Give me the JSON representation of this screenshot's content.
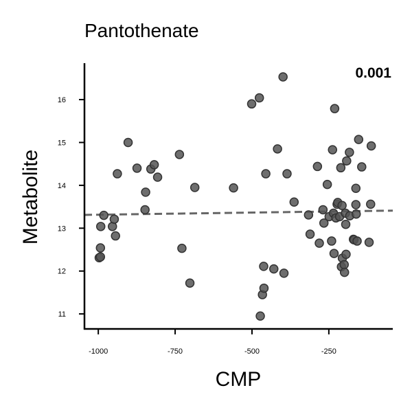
{
  "chart_data": {
    "type": "scatter",
    "title": "Pantothenate",
    "xlabel": "CMP",
    "ylabel": "Metabolite",
    "annotation": "0.001",
    "xlim": [
      -1045,
      -42
    ],
    "ylim": [
      10.65,
      16.85
    ],
    "xticks": [
      -1000,
      -750,
      -500,
      -250
    ],
    "yticks": [
      11,
      12,
      13,
      14,
      15,
      16
    ],
    "xtick_labels": [
      "-1000",
      "-750",
      "-500",
      "-250"
    ],
    "ytick_labels": [
      "11",
      "12",
      "13",
      "14",
      "15",
      "16"
    ],
    "grid": false,
    "colors": {
      "points": "#555555",
      "trend": "#666666",
      "axes": "#000000"
    },
    "trend_line": {
      "x": [
        -1045,
        -42
      ],
      "y": [
        13.31,
        13.41
      ]
    },
    "points": [
      {
        "x": -997,
        "y": 12.31
      },
      {
        "x": -993,
        "y": 12.33
      },
      {
        "x": -993,
        "y": 12.54
      },
      {
        "x": -992,
        "y": 13.04
      },
      {
        "x": -982,
        "y": 13.3
      },
      {
        "x": -954,
        "y": 13.04
      },
      {
        "x": -948,
        "y": 13.21
      },
      {
        "x": -944,
        "y": 12.82
      },
      {
        "x": -938,
        "y": 14.27
      },
      {
        "x": -903,
        "y": 15.0
      },
      {
        "x": -874,
        "y": 14.4
      },
      {
        "x": -848,
        "y": 13.43
      },
      {
        "x": -846,
        "y": 13.84
      },
      {
        "x": -829,
        "y": 14.38
      },
      {
        "x": -818,
        "y": 14.48
      },
      {
        "x": -807,
        "y": 14.19
      },
      {
        "x": -736,
        "y": 14.72
      },
      {
        "x": -728,
        "y": 12.53
      },
      {
        "x": -702,
        "y": 11.72
      },
      {
        "x": -686,
        "y": 13.95
      },
      {
        "x": -560,
        "y": 13.94
      },
      {
        "x": -501,
        "y": 15.9
      },
      {
        "x": -476,
        "y": 16.04
      },
      {
        "x": -473,
        "y": 10.95
      },
      {
        "x": -466,
        "y": 11.45
      },
      {
        "x": -462,
        "y": 12.11
      },
      {
        "x": -461,
        "y": 11.6
      },
      {
        "x": -455,
        "y": 14.27
      },
      {
        "x": -429,
        "y": 12.05
      },
      {
        "x": -417,
        "y": 14.85
      },
      {
        "x": -399,
        "y": 16.53
      },
      {
        "x": -396,
        "y": 11.95
      },
      {
        "x": -386,
        "y": 14.27
      },
      {
        "x": -363,
        "y": 13.61
      },
      {
        "x": -316,
        "y": 13.31
      },
      {
        "x": -311,
        "y": 12.86
      },
      {
        "x": -287,
        "y": 14.44
      },
      {
        "x": -281,
        "y": 12.65
      },
      {
        "x": -269,
        "y": 13.43
      },
      {
        "x": -266,
        "y": 13.12
      },
      {
        "x": -255,
        "y": 14.02
      },
      {
        "x": -249,
        "y": 13.27
      },
      {
        "x": -241,
        "y": 12.7
      },
      {
        "x": -238,
        "y": 14.83
      },
      {
        "x": -235,
        "y": 13.35
      },
      {
        "x": -233,
        "y": 12.41
      },
      {
        "x": -231,
        "y": 15.79
      },
      {
        "x": -227,
        "y": 13.24
      },
      {
        "x": -223,
        "y": 13.56
      },
      {
        "x": -221,
        "y": 13.6
      },
      {
        "x": -215,
        "y": 13.27
      },
      {
        "x": -211,
        "y": 14.41
      },
      {
        "x": -209,
        "y": 12.1
      },
      {
        "x": -207,
        "y": 13.53
      },
      {
        "x": -206,
        "y": 12.3
      },
      {
        "x": -200,
        "y": 12.15
      },
      {
        "x": -199,
        "y": 11.97
      },
      {
        "x": -196,
        "y": 13.35
      },
      {
        "x": -195,
        "y": 13.09
      },
      {
        "x": -194,
        "y": 12.39
      },
      {
        "x": -192,
        "y": 14.57
      },
      {
        "x": -183,
        "y": 14.77
      },
      {
        "x": -182,
        "y": 13.29
      },
      {
        "x": -170,
        "y": 12.74
      },
      {
        "x": -168,
        "y": 12.73
      },
      {
        "x": -162,
        "y": 13.55
      },
      {
        "x": -162,
        "y": 13.93
      },
      {
        "x": -161,
        "y": 13.33
      },
      {
        "x": -158,
        "y": 12.7
      },
      {
        "x": -153,
        "y": 15.07
      },
      {
        "x": -143,
        "y": 14.43
      },
      {
        "x": -119,
        "y": 12.67
      },
      {
        "x": -114,
        "y": 13.56
      },
      {
        "x": -112,
        "y": 14.92
      }
    ]
  }
}
